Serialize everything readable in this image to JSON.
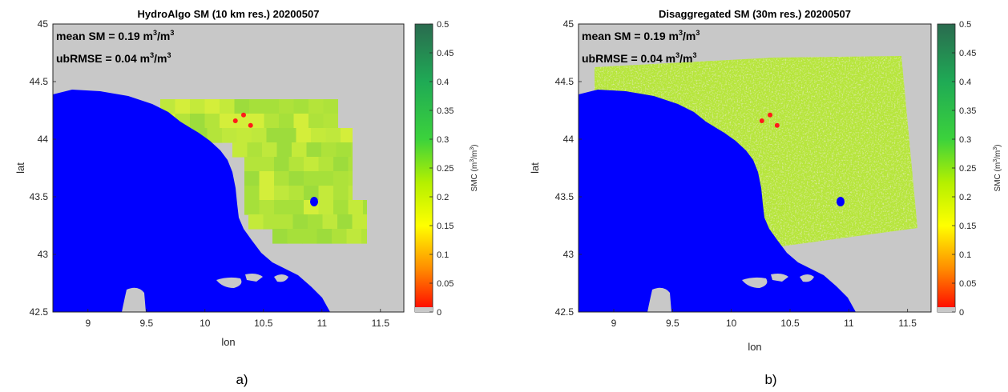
{
  "chart_data": [
    {
      "type": "heatmap",
      "title": "HydroAlgo SM (10 km res.) 20200507",
      "xlabel": "lon",
      "ylabel": "lat",
      "xlim": [
        8.7,
        11.7
      ],
      "ylim": [
        42.5,
        45.0
      ],
      "xticks": [
        "9",
        "9.5",
        "10",
        "10.5",
        "11",
        "11.5"
      ],
      "yticks": [
        "42.5",
        "43",
        "43.5",
        "44",
        "44.5",
        "45"
      ],
      "annotations": [
        {
          "label": "mean SM = 0.19 m",
          "unit_a": "3",
          "mid": "/m",
          "unit_b": "3"
        },
        {
          "label": "ubRMSE = 0.04 m",
          "unit_a": "3",
          "mid": "/m",
          "unit_b": "3"
        }
      ],
      "colorbar": {
        "label": "SMC (m",
        "label_sup1": "3",
        "label_mid": "/m",
        "label_sup2": "3",
        "label_end": ")",
        "range": [
          0,
          0.5
        ],
        "ticks": [
          "0",
          "0.05",
          "0.1",
          "0.15",
          "0.2",
          "0.25",
          "0.3",
          "0.35",
          "0.4",
          "0.45",
          "0.5"
        ]
      },
      "grid": false,
      "colors": {
        "sea": "#0000ff",
        "nodata": "#c8c8c8",
        "points": "#ff1a1a"
      },
      "points": [
        {
          "lon": 10.33,
          "lat": 44.21
        },
        {
          "lon": 10.26,
          "lat": 44.16
        },
        {
          "lon": 10.39,
          "lat": 44.12
        }
      ]
    },
    {
      "type": "heatmap",
      "title": "Disaggregated SM (30m res.) 20200507",
      "xlabel": "lon",
      "ylabel": "lat",
      "xlim": [
        8.7,
        11.7
      ],
      "ylim": [
        42.5,
        45.0
      ],
      "xticks": [
        "9",
        "9.5",
        "10",
        "10.5",
        "11",
        "11.5"
      ],
      "yticks": [
        "42.5",
        "43",
        "43.5",
        "44",
        "44.5",
        "45"
      ],
      "annotations": [
        {
          "label": "mean SM = 0.19 m",
          "unit_a": "3",
          "mid": "/m",
          "unit_b": "3"
        },
        {
          "label": "ubRMSE = 0.04 m",
          "unit_a": "3",
          "mid": "/m",
          "unit_b": "3"
        }
      ],
      "colorbar": {
        "label": "SMC (m",
        "label_sup1": "3",
        "label_mid": "/m",
        "label_sup2": "3",
        "label_end": ")",
        "range": [
          0,
          0.5
        ],
        "ticks": [
          "0",
          "0.05",
          "0.1",
          "0.15",
          "0.2",
          "0.25",
          "0.3",
          "0.35",
          "0.4",
          "0.45",
          "0.5"
        ]
      },
      "grid": false,
      "colors": {
        "sea": "#0000ff",
        "nodata": "#c8c8c8",
        "points": "#ff1a1a"
      },
      "points": [
        {
          "lon": 10.33,
          "lat": 44.21
        },
        {
          "lon": 10.26,
          "lat": 44.16
        },
        {
          "lon": 10.39,
          "lat": 44.12
        }
      ]
    }
  ],
  "captions": [
    "a)",
    "b)"
  ]
}
